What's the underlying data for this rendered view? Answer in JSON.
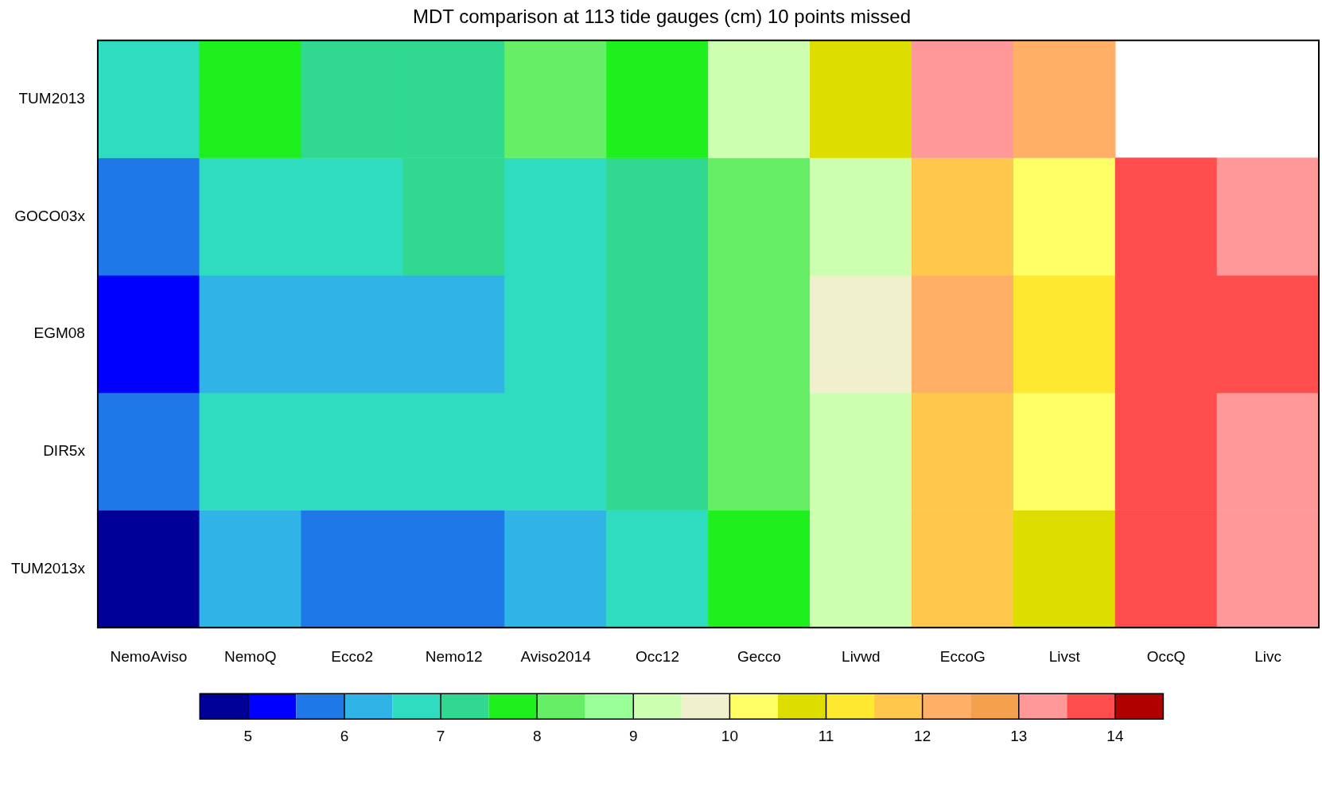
{
  "chart_data": {
    "type": "heatmap",
    "title": "MDT comparison at 113 tide gauges (cm) 10 points missed",
    "categories": [
      "NemoAviso",
      "NemoQ",
      "Ecco2",
      "Nemo12",
      "Aviso2014",
      "Occ12",
      "Gecco",
      "Livwd",
      "EccoG",
      "Livst",
      "OccQ",
      "Livc"
    ],
    "y_categories": [
      "TUM2013",
      "GOCO03x",
      "EGM08",
      "DIR5x",
      "TUM2013x"
    ],
    "cells": [
      [
        6.75,
        7.75,
        7.25,
        7.25,
        8.25,
        7.75,
        9.25,
        10.75,
        13.25,
        12.25,
        null,
        null
      ],
      [
        5.75,
        6.75,
        6.75,
        7.25,
        6.75,
        7.25,
        8.25,
        9.25,
        11.75,
        10.25,
        13.75,
        13.25
      ],
      [
        5.25,
        6.25,
        6.25,
        6.25,
        6.75,
        7.25,
        8.25,
        9.75,
        12.25,
        11.25,
        13.75,
        13.75
      ],
      [
        5.75,
        6.75,
        6.75,
        6.75,
        6.75,
        7.25,
        8.25,
        9.25,
        11.75,
        10.25,
        13.75,
        13.25
      ],
      [
        4.75,
        6.25,
        5.75,
        5.75,
        6.25,
        6.75,
        7.75,
        9.25,
        11.75,
        10.75,
        13.75,
        13.25
      ]
    ],
    "clim": [
      4.5,
      14.5
    ],
    "cticks": [
      5,
      6,
      7,
      8,
      9,
      10,
      11,
      12,
      13,
      14
    ],
    "colors": [
      "#000099",
      "#0000ff",
      "#1e78e8",
      "#30b4e8",
      "#30dcc0",
      "#30d890",
      "#1ef01e",
      "#66ee66",
      "#99ff99",
      "#ccffb0",
      "#f0f0cc",
      "#ffff66",
      "#dddd00",
      "#ffe830",
      "#ffc84c",
      "#ffb066",
      "#f5a04c",
      "#ff9898",
      "#ff4c4c",
      "#b00000"
    ]
  }
}
